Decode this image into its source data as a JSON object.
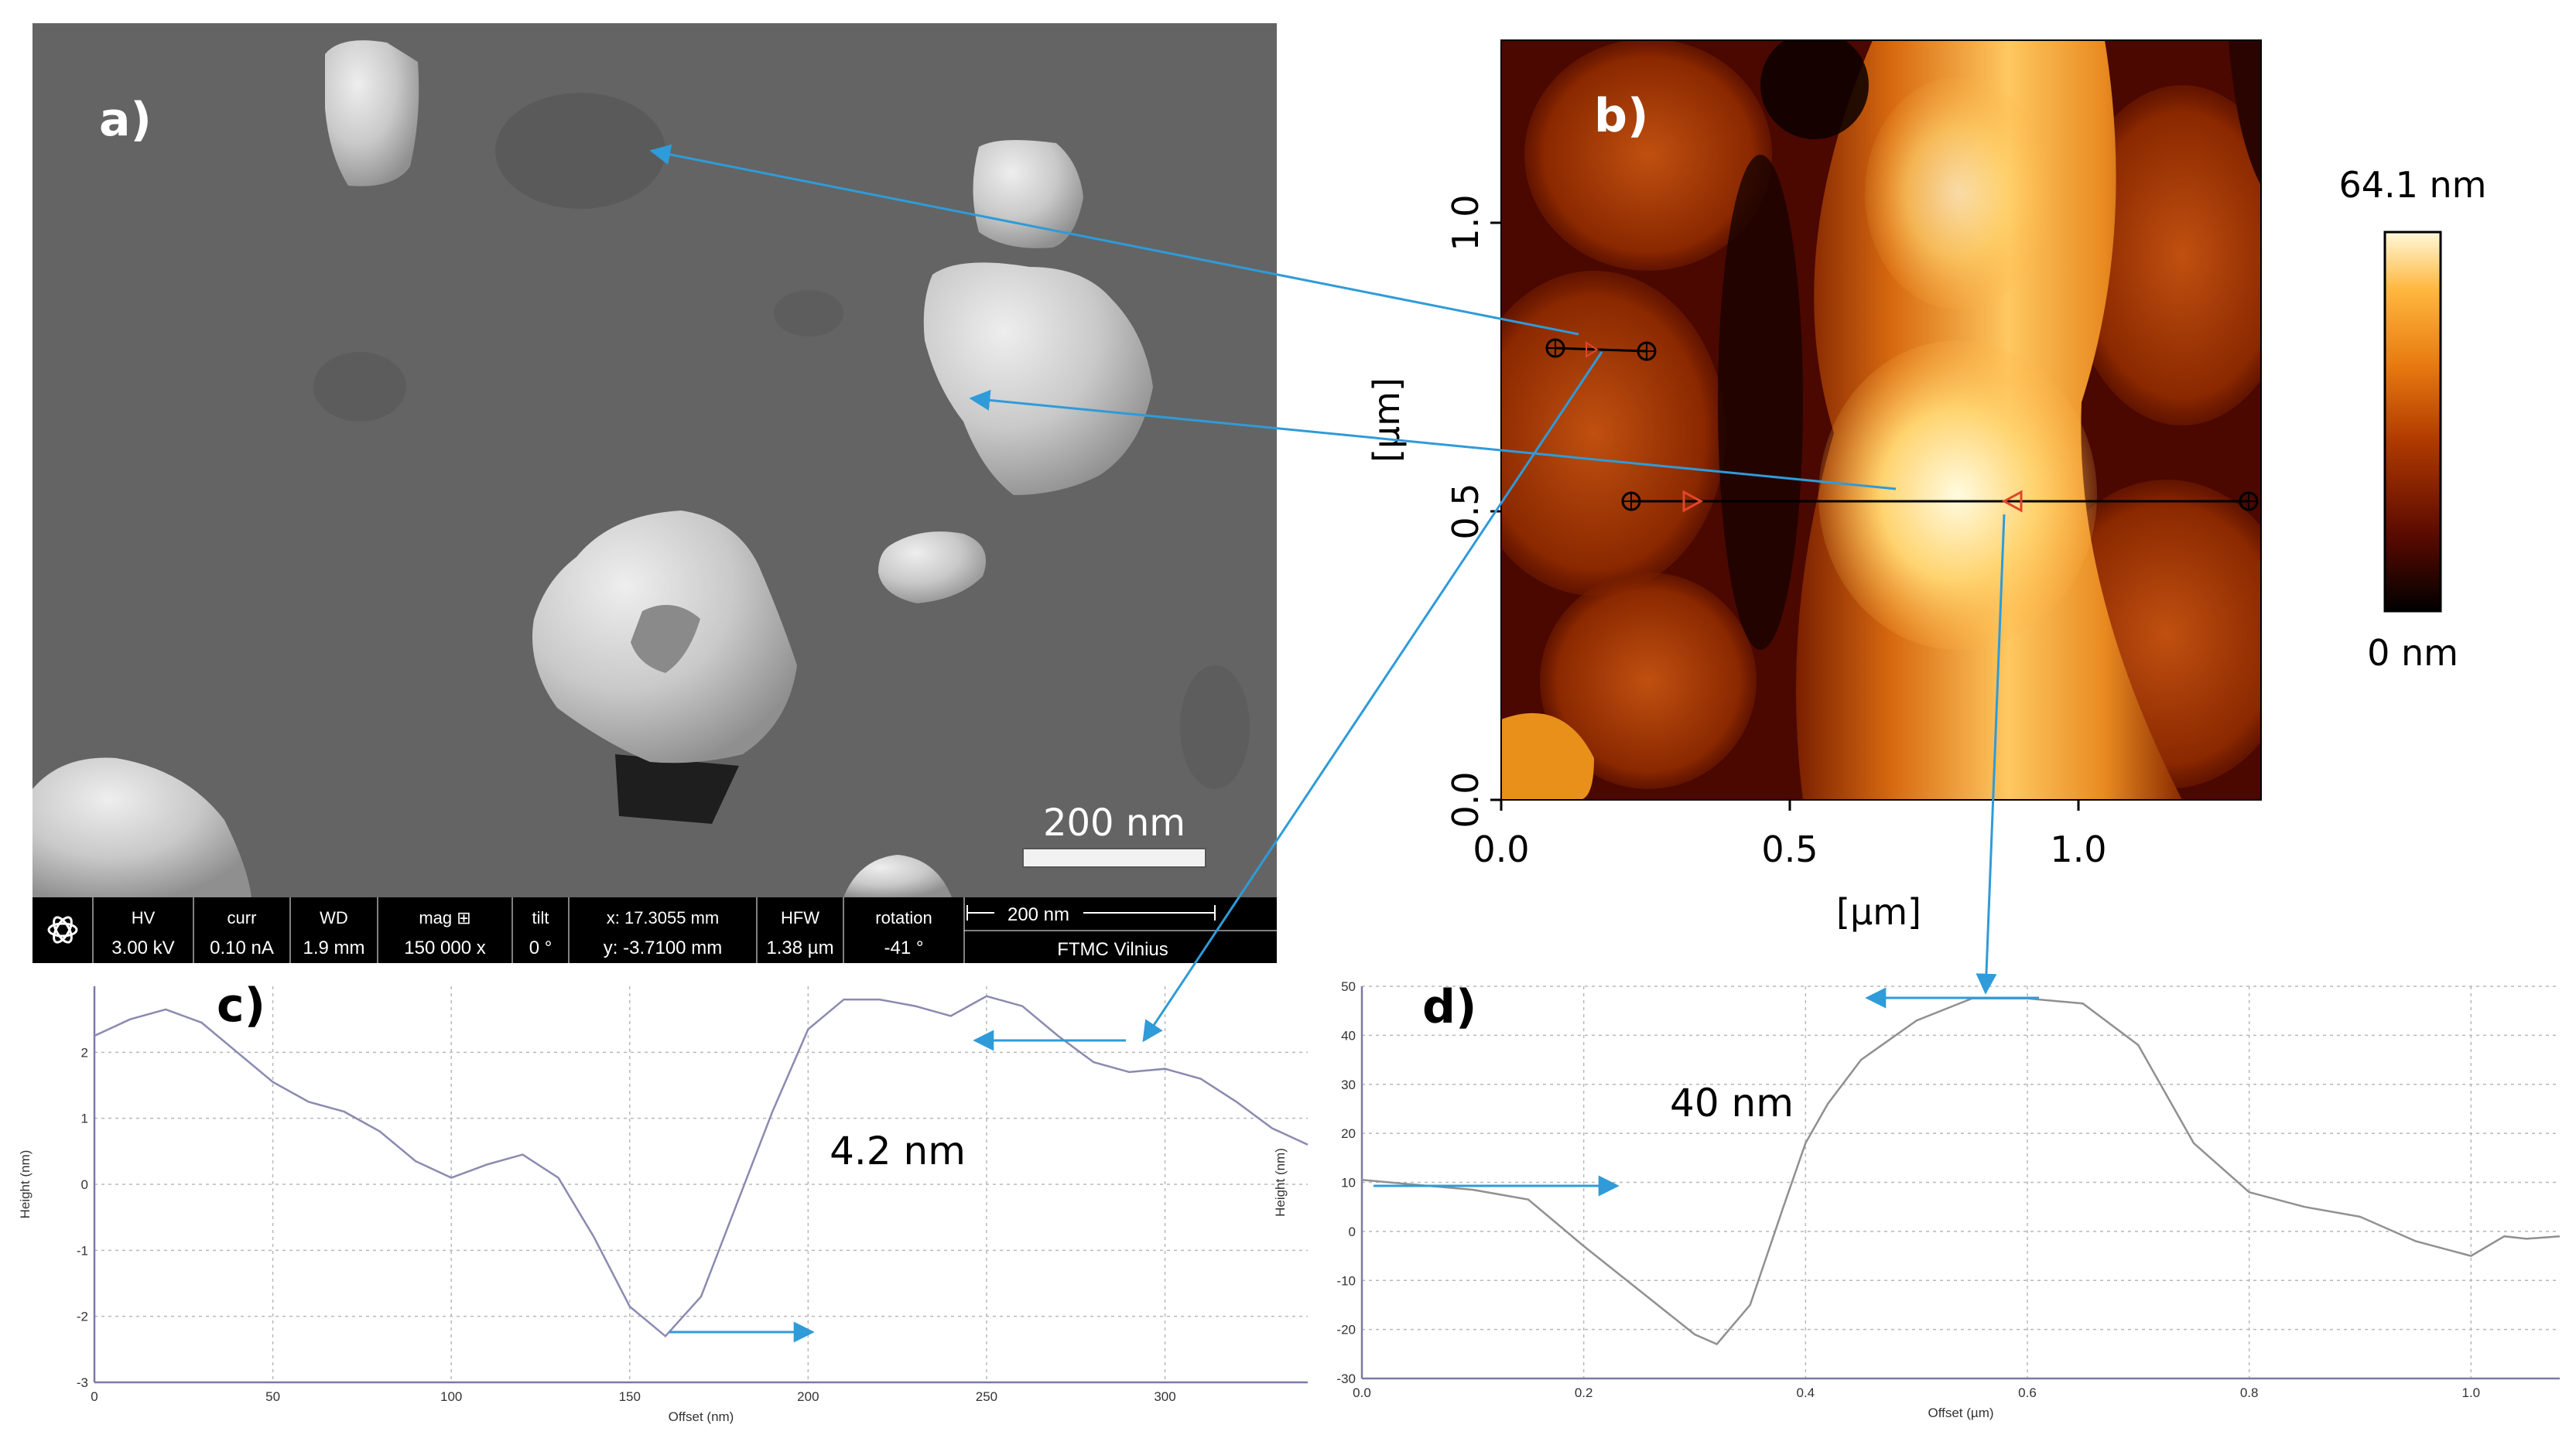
{
  "sem": {
    "panel_label": "a)",
    "scale_bar_label": "200 nm",
    "info_bar": {
      "columns": [
        {
          "head": "HV",
          "value": "3.00 kV"
        },
        {
          "head": "curr",
          "value": "0.10 nA"
        },
        {
          "head": "WD",
          "value": "1.9 mm"
        },
        {
          "head": "mag ⊞",
          "value": "150 000 x"
        },
        {
          "head": "tilt",
          "value": "0 °"
        },
        {
          "head": "x: 17.3055 mm",
          "value": "y: -3.7100 mm"
        },
        {
          "head": "HFW",
          "value": "1.38 µm"
        },
        {
          "head": "rotation",
          "value": "-41 °"
        }
      ],
      "bar_label": "200 nm",
      "institution": "FTMC Vilnius"
    }
  },
  "afm": {
    "panel_label": "b)",
    "xlabel": "[µm]",
    "ylabel": "[µm]",
    "x_ticks": [
      "0.0",
      "0.5",
      "1.0"
    ],
    "y_ticks": [
      "0.0",
      "0.5",
      "1.0"
    ],
    "colorbar_max": "64.1 nm",
    "colorbar_min": "0 nm",
    "colors": [
      "#000000",
      "#5a0a00",
      "#b03a00",
      "#e87a10",
      "#ffb840",
      "#fff8d8"
    ]
  },
  "chart_data": [
    {
      "type": "line",
      "panel_label": "c)",
      "annotation": "4.2 nm",
      "xlabel": "Offset (nm)",
      "ylabel": "Height (nm)",
      "xlim": [
        0,
        340
      ],
      "ylim": [
        -3,
        3
      ],
      "x_ticks": [
        0,
        50,
        100,
        150,
        200,
        250,
        300
      ],
      "y_ticks": [
        2,
        1,
        0,
        -1,
        -2,
        -3
      ],
      "series": [
        {
          "x": [
            0,
            10,
            20,
            30,
            40,
            50,
            60,
            70,
            80,
            90,
            100,
            110,
            120,
            130,
            140,
            150,
            160,
            170,
            180,
            190,
            200,
            210,
            220,
            230,
            240,
            250,
            260,
            270,
            280,
            290,
            300,
            310,
            320,
            330,
            340
          ],
          "y": [
            2.25,
            2.5,
            2.65,
            2.45,
            2.0,
            1.55,
            1.25,
            1.1,
            0.8,
            0.35,
            0.1,
            0.3,
            0.45,
            0.1,
            -0.8,
            -1.85,
            -2.3,
            -1.7,
            -0.3,
            1.1,
            2.35,
            2.8,
            2.8,
            2.7,
            2.55,
            2.85,
            2.7,
            2.25,
            1.85,
            1.7,
            1.75,
            1.6,
            1.25,
            0.85,
            0.6
          ]
        }
      ]
    },
    {
      "type": "line",
      "panel_label": "d)",
      "annotation": "40 nm",
      "xlabel": "Offset (µm)",
      "ylabel": "Height (nm)",
      "xlim": [
        0,
        1.08
      ],
      "ylim": [
        -30,
        50
      ],
      "x_ticks": [
        0.0,
        0.2,
        0.4,
        0.6,
        0.8,
        1.0
      ],
      "y_ticks": [
        50,
        40,
        30,
        20,
        10,
        0,
        -10,
        -20,
        -30
      ],
      "series": [
        {
          "x": [
            0.0,
            0.05,
            0.1,
            0.15,
            0.2,
            0.25,
            0.3,
            0.32,
            0.35,
            0.38,
            0.4,
            0.42,
            0.45,
            0.5,
            0.55,
            0.6,
            0.65,
            0.7,
            0.75,
            0.8,
            0.85,
            0.9,
            0.95,
            1.0,
            1.03,
            1.05,
            1.08
          ],
          "y": [
            10.5,
            9.5,
            8.5,
            6.5,
            -3,
            -12,
            -21,
            -23,
            -15,
            5,
            18,
            26,
            35,
            43,
            47.5,
            47.5,
            46.5,
            38,
            18,
            8,
            5,
            3,
            -2,
            -5,
            -1,
            -1.5,
            -1
          ]
        }
      ]
    }
  ]
}
